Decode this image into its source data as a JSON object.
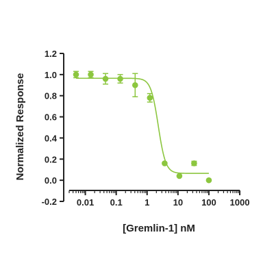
{
  "chart_data": {
    "type": "scatter",
    "xlabel": "[Gremlin-1] nM",
    "ylabel": "Normalized Response",
    "xscale": "log",
    "xlim": [
      0.003,
      1000
    ],
    "ylim": [
      -0.2,
      1.2
    ],
    "x_ticks": [
      {
        "value": 0.01,
        "label": "0.01"
      },
      {
        "value": 0.1,
        "label": "0.1"
      },
      {
        "value": 1,
        "label": "1"
      },
      {
        "value": 10,
        "label": "10"
      },
      {
        "value": 100,
        "label": "100"
      },
      {
        "value": 1000,
        "label": "1000"
      }
    ],
    "y_ticks": [
      {
        "value": -0.2,
        "label": "-0.2"
      },
      {
        "value": 0.0,
        "label": "0.0"
      },
      {
        "value": 0.2,
        "label": "0.2"
      },
      {
        "value": 0.4,
        "label": "0.4"
      },
      {
        "value": 0.6,
        "label": "0.6"
      },
      {
        "value": 0.8,
        "label": "0.8"
      },
      {
        "value": 1.0,
        "label": "1.0"
      },
      {
        "value": 1.2,
        "label": "1.2"
      }
    ],
    "grid": false,
    "color": "#8cc63f",
    "points": [
      {
        "x": 0.005,
        "y": 1.0,
        "err": 0.03
      },
      {
        "x": 0.015,
        "y": 1.0,
        "err": 0.03
      },
      {
        "x": 0.045,
        "y": 0.96,
        "err": 0.05
      },
      {
        "x": 0.135,
        "y": 0.96,
        "err": 0.04
      },
      {
        "x": 0.41,
        "y": 0.9,
        "err": 0.11
      },
      {
        "x": 1.23,
        "y": 0.78,
        "err": 0.04
      },
      {
        "x": 3.7,
        "y": 0.16,
        "err": 0.0
      },
      {
        "x": 11.1,
        "y": 0.04,
        "err": 0.0
      },
      {
        "x": 33.3,
        "y": 0.16,
        "err": 0.02
      },
      {
        "x": 100,
        "y": 0.0,
        "err": 0.0
      }
    ],
    "fit": {
      "type": "4PL",
      "top": 0.965,
      "bottom": 0.065,
      "ec50": 2.3,
      "hill": 3.6,
      "x_from": 0.005,
      "x_to": 100
    }
  }
}
